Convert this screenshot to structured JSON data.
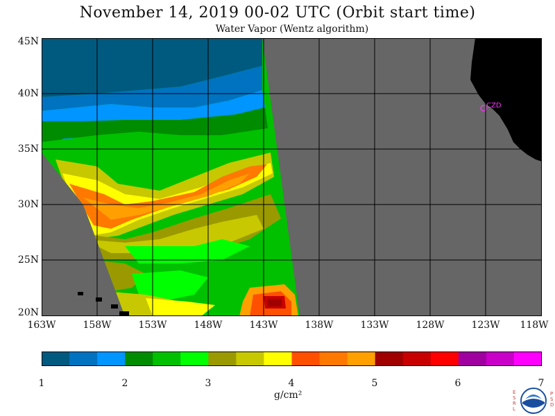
{
  "title": "November 14, 2019  00-02 UTC  (Orbit start time)",
  "subtitle": "Water Vapor (Wentz algorithm)",
  "lat_labels": [
    "45N",
    "40N",
    "35N",
    "30N",
    "25N",
    "20N"
  ],
  "lon_labels": [
    "163W",
    "158W",
    "153W",
    "148W",
    "143W",
    "138W",
    "133W",
    "128W",
    "123W",
    "118W"
  ],
  "map": {
    "lat_range": [
      20,
      45
    ],
    "lon_range": [
      -163,
      -118
    ],
    "grid": true,
    "station_label": "CZD",
    "colors": {
      "land": "#000000",
      "no_data": "#666666",
      "grid": "#000000",
      "station": "#ff33ff"
    }
  },
  "colorbar": {
    "ticks": [
      "1",
      "2",
      "3",
      "4",
      "5",
      "6",
      "7"
    ],
    "unit": "g/cm²",
    "colors": [
      "#005a80",
      "#0073c0",
      "#0095ff",
      "#008c00",
      "#00c000",
      "#00ff00",
      "#9a9a00",
      "#c8c800",
      "#ffff00",
      "#ff5000",
      "#ff7800",
      "#ffa000",
      "#a00000",
      "#c80000",
      "#ff0000",
      "#a000a0",
      "#c800c8",
      "#ff00ff"
    ]
  },
  "logo": {
    "left_letters": "ESRL",
    "right_letters": "PSD"
  }
}
